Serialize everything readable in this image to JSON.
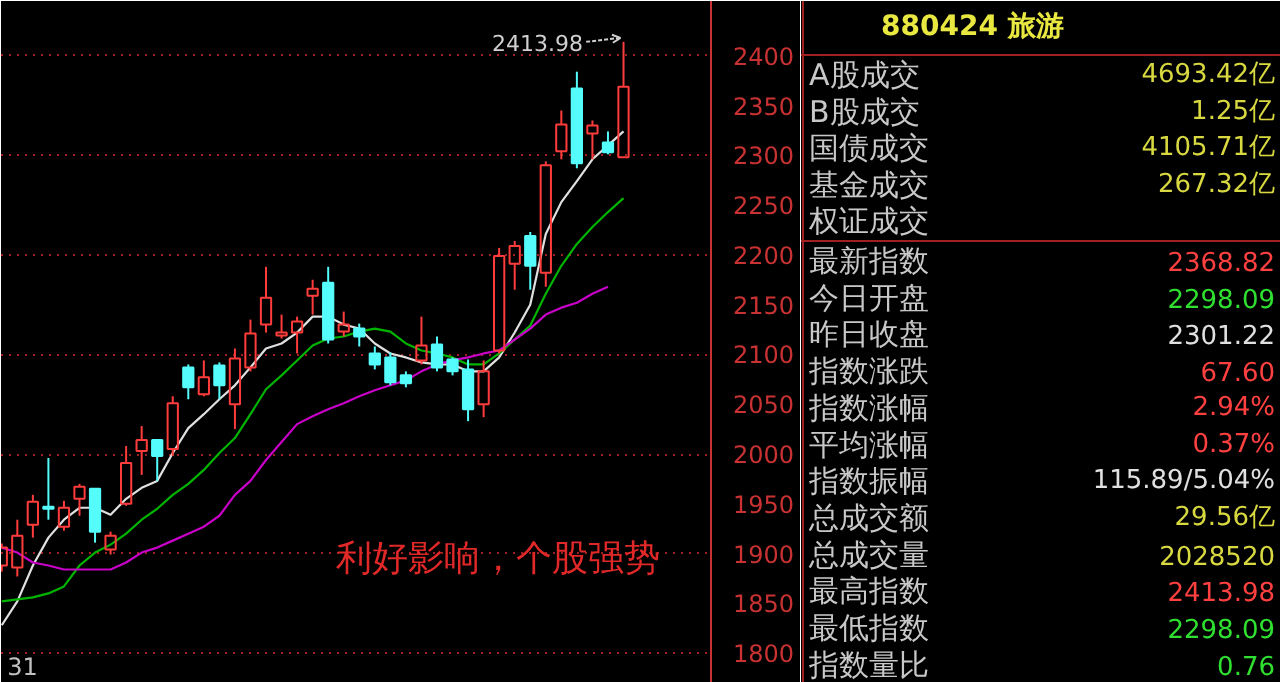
{
  "chart_data": [
    {
      "type": "candlestick",
      "categories": [
        null,
        null,
        null,
        null,
        null,
        null,
        null,
        null,
        null,
        null,
        null,
        null,
        null,
        null,
        null,
        null,
        null,
        null,
        null,
        null,
        null,
        null,
        null,
        null,
        null,
        null,
        null,
        null,
        null,
        null,
        null,
        null,
        null,
        null,
        null,
        null,
        null,
        null,
        null,
        null,
        null
      ],
      "ohlc": [
        [
          1888,
          1910,
          1882,
          1906
        ],
        [
          1886,
          1934,
          1877,
          1918
        ],
        [
          1929,
          1959,
          1916,
          1952
        ],
        [
          1947,
          1996,
          1934,
          1945
        ],
        [
          1927,
          1953,
          1923,
          1946
        ],
        [
          1955,
          1970,
          1938,
          1967
        ],
        [
          1965,
          1965,
          1911,
          1922
        ],
        [
          1904,
          1922,
          1899,
          1918
        ],
        [
          1950,
          2008,
          1948,
          1991
        ],
        [
          2003,
          2028,
          1979,
          2014
        ],
        [
          2014,
          2014,
          1973,
          1998
        ],
        [
          2005,
          2058,
          1998,
          2051
        ],
        [
          2087,
          2090,
          2055,
          2067
        ],
        [
          2060,
          2094,
          2058,
          2077
        ],
        [
          2089,
          2092,
          2055,
          2069
        ],
        [
          2050,
          2106,
          2025,
          2096
        ],
        [
          2087,
          2135,
          2083,
          2121
        ],
        [
          2130,
          2188,
          2122,
          2157
        ],
        [
          2119,
          2140,
          2116,
          2122
        ],
        [
          2122,
          2138,
          2101,
          2133
        ],
        [
          2159,
          2175,
          2140,
          2166
        ],
        [
          2172,
          2188,
          2111,
          2115
        ],
        [
          2123,
          2143,
          2118,
          2130
        ],
        [
          2126,
          2131,
          2108,
          2118
        ],
        [
          2101,
          2108,
          2085,
          2090
        ],
        [
          2097,
          2102,
          2069,
          2072
        ],
        [
          2079,
          2083,
          2067,
          2071
        ],
        [
          2094,
          2138,
          2090,
          2109
        ],
        [
          2110,
          2118,
          2083,
          2087
        ],
        [
          2095,
          2097,
          2079,
          2083
        ],
        [
          2085,
          2095,
          2033,
          2045
        ],
        [
          2050,
          2094,
          2037,
          2083
        ],
        [
          2104,
          2207,
          2101,
          2199
        ],
        [
          2191,
          2214,
          2165,
          2209
        ],
        [
          2219,
          2223,
          2165,
          2189
        ],
        [
          2182,
          2294,
          2168,
          2290
        ],
        [
          2304,
          2345,
          2296,
          2331
        ],
        [
          2367,
          2384,
          2287,
          2292
        ],
        [
          2322,
          2335,
          2296,
          2330
        ],
        [
          2313,
          2324,
          2301,
          2303
        ],
        [
          2298.09,
          2413.98,
          2298.09,
          2368.82
        ]
      ],
      "colors": [
        "#ff3c3c",
        "#ff3c3c",
        "#ff3c3c",
        "#54fcfc",
        "#ff3c3c",
        "#ff3c3c",
        "#54fcfc",
        "#ff3c3c",
        "#ff3c3c",
        "#ff3c3c",
        "#54fcfc",
        "#ff3c3c",
        "#54fcfc",
        "#ff3c3c",
        "#54fcfc",
        "#ff3c3c",
        "#ff3c3c",
        "#ff3c3c",
        "#ff3c3c",
        "#ff3c3c",
        "#ff3c3c",
        "#54fcfc",
        "#ff3c3c",
        "#54fcfc",
        "#54fcfc",
        "#54fcfc",
        "#54fcfc",
        "#ff3c3c",
        "#54fcfc",
        "#54fcfc",
        "#54fcfc",
        "#ff3c3c",
        "#ff3c3c",
        "#ff3c3c",
        "#54fcfc",
        "#ff3c3c",
        "#ff3c3c",
        "#54fcfc",
        "#ff3c3c",
        "#54fcfc",
        "#ff3c3c"
      ],
      "series": [
        {
          "type": "line",
          "color": "#e0e0e0",
          "values": [
            1828,
            1852,
            1888,
            1916,
            1934,
            1946,
            1946,
            1939,
            1955,
            1966,
            1973,
            2001,
            2026,
            2040,
            2055,
            2069,
            2087,
            2106,
            2111,
            2122,
            2138,
            2138,
            2130,
            2126,
            2111,
            2101,
            2097,
            2092,
            2090,
            2090,
            2083,
            2083,
            2097,
            2122,
            2150,
            2221,
            2253,
            2274,
            2296,
            2310,
            2324
          ]
        },
        {
          "type": "line",
          "color": "#00b400",
          "values": [
            1852,
            1854,
            1856,
            1860,
            1867,
            1888,
            1901,
            1909,
            1920,
            1934,
            1945,
            1959,
            1970,
            1984,
            2001,
            2016,
            2040,
            2065,
            2079,
            2094,
            2109,
            2116,
            2118,
            2123,
            2126,
            2123,
            2111,
            2104,
            2101,
            2097,
            2090,
            2090,
            2101,
            2115,
            2129,
            2161,
            2189,
            2211,
            2228,
            2243,
            2257
          ]
        },
        {
          "type": "line",
          "color": "#c800c8",
          "values": [
            1906,
            1901,
            1891,
            1888,
            1884,
            1884,
            1884,
            1884,
            1891,
            1901,
            1906,
            1913,
            1920,
            1927,
            1938,
            1959,
            1973,
            1994,
            2012,
            2030,
            2038,
            2045,
            2051,
            2058,
            2064,
            2069,
            2074,
            2083,
            2090,
            2094,
            2097,
            2101,
            2104,
            2115,
            2126,
            2140,
            2147,
            2152,
            2161,
            2168,
            null
          ]
        }
      ],
      "ylim": [
        1770,
        2455
      ],
      "yticks": [
        1800,
        1850,
        1900,
        1950,
        2000,
        2050,
        2100,
        2150,
        2200,
        2250,
        2300,
        2350,
        2400
      ],
      "grid": "y",
      "annotations": [
        "2413.98",
        "利好影响，个股强势",
        "31"
      ]
    },
    {
      "type": "other",
      "title": "880424 旅游",
      "categories": [
        "A股成交",
        "B股成交",
        "国债成交",
        "基金成交",
        "权证成交",
        "最新指数",
        "今日开盘",
        "昨日收盘",
        "指数涨跌",
        "指数涨幅",
        "平均涨幅",
        "指数振幅",
        "总成交额",
        "总成交量",
        "最高指数",
        "最低指数",
        "指数量比"
      ],
      "value_labels": [
        "4693.42亿",
        "1.25亿",
        "4105.71亿",
        "267.32亿",
        null,
        "2368.82",
        "2298.09",
        "2301.22",
        "67.60",
        "2.94%",
        "0.37%",
        "115.89/5.04%",
        "29.56亿",
        "2028520",
        "2413.98",
        "2298.09",
        "0.76"
      ]
    }
  ]
}
